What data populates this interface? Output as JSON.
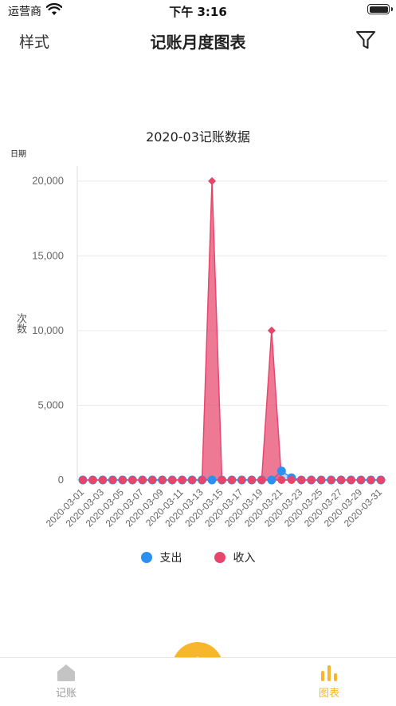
{
  "status_bar": {
    "carrier": "运营商",
    "time": "下午 3:16"
  },
  "nav": {
    "left_label": "样式",
    "title": "记账月度图表",
    "filter_icon": "filter-icon"
  },
  "chart_data": {
    "type": "area",
    "title": "2020-03记账数据",
    "y_unit": "日期",
    "ylabel": "次数",
    "ylim": [
      0,
      21000
    ],
    "y_ticks": [
      "0",
      "5,000",
      "10,000",
      "15,000",
      "20,000"
    ],
    "y_tick_values": [
      0,
      5000,
      10000,
      15000,
      20000
    ],
    "x": [
      "2020-03-01",
      "2020-03-02",
      "2020-03-03",
      "2020-03-04",
      "2020-03-05",
      "2020-03-06",
      "2020-03-07",
      "2020-03-08",
      "2020-03-09",
      "2020-03-10",
      "2020-03-11",
      "2020-03-12",
      "2020-03-13",
      "2020-03-14",
      "2020-03-15",
      "2020-03-16",
      "2020-03-17",
      "2020-03-18",
      "2020-03-19",
      "2020-03-20",
      "2020-03-21",
      "2020-03-22",
      "2020-03-23",
      "2020-03-24",
      "2020-03-25",
      "2020-03-26",
      "2020-03-27",
      "2020-03-28",
      "2020-03-29",
      "2020-03-30",
      "2020-03-31"
    ],
    "x_tick_labels": [
      "2020-03-01",
      "2020-03-03",
      "2020-03-05",
      "2020-03-07",
      "2020-03-09",
      "2020-03-11",
      "2020-03-13",
      "2020-03-15",
      "2020-03-17",
      "2020-03-19",
      "2020-03-21",
      "2020-03-23",
      "2020-03-25",
      "2020-03-27",
      "2020-03-29",
      "2020-03-31"
    ],
    "series": [
      {
        "name": "支出",
        "color": "#2d8ff0",
        "values": [
          0,
          0,
          0,
          0,
          0,
          0,
          0,
          0,
          0,
          0,
          0,
          0,
          0,
          0,
          0,
          0,
          0,
          0,
          0,
          0,
          600,
          150,
          0,
          0,
          0,
          0,
          0,
          0,
          0,
          0,
          0
        ]
      },
      {
        "name": "收入",
        "color": "#e8456b",
        "values": [
          0,
          0,
          0,
          0,
          0,
          0,
          0,
          0,
          0,
          0,
          0,
          0,
          0,
          20000,
          0,
          0,
          0,
          0,
          0,
          10000,
          0,
          0,
          0,
          0,
          0,
          0,
          0,
          0,
          0,
          0,
          0
        ]
      }
    ],
    "grid": true,
    "legend": "bottom-center"
  },
  "tabs": [
    {
      "label": "记账",
      "icon": "home-icon",
      "active": false
    },
    {
      "label": "图表",
      "icon": "bar-chart-icon",
      "active": true
    }
  ],
  "fab_icon": "plus-icon",
  "colors": {
    "accent": "#f8b62d",
    "inactive": "#999999"
  }
}
